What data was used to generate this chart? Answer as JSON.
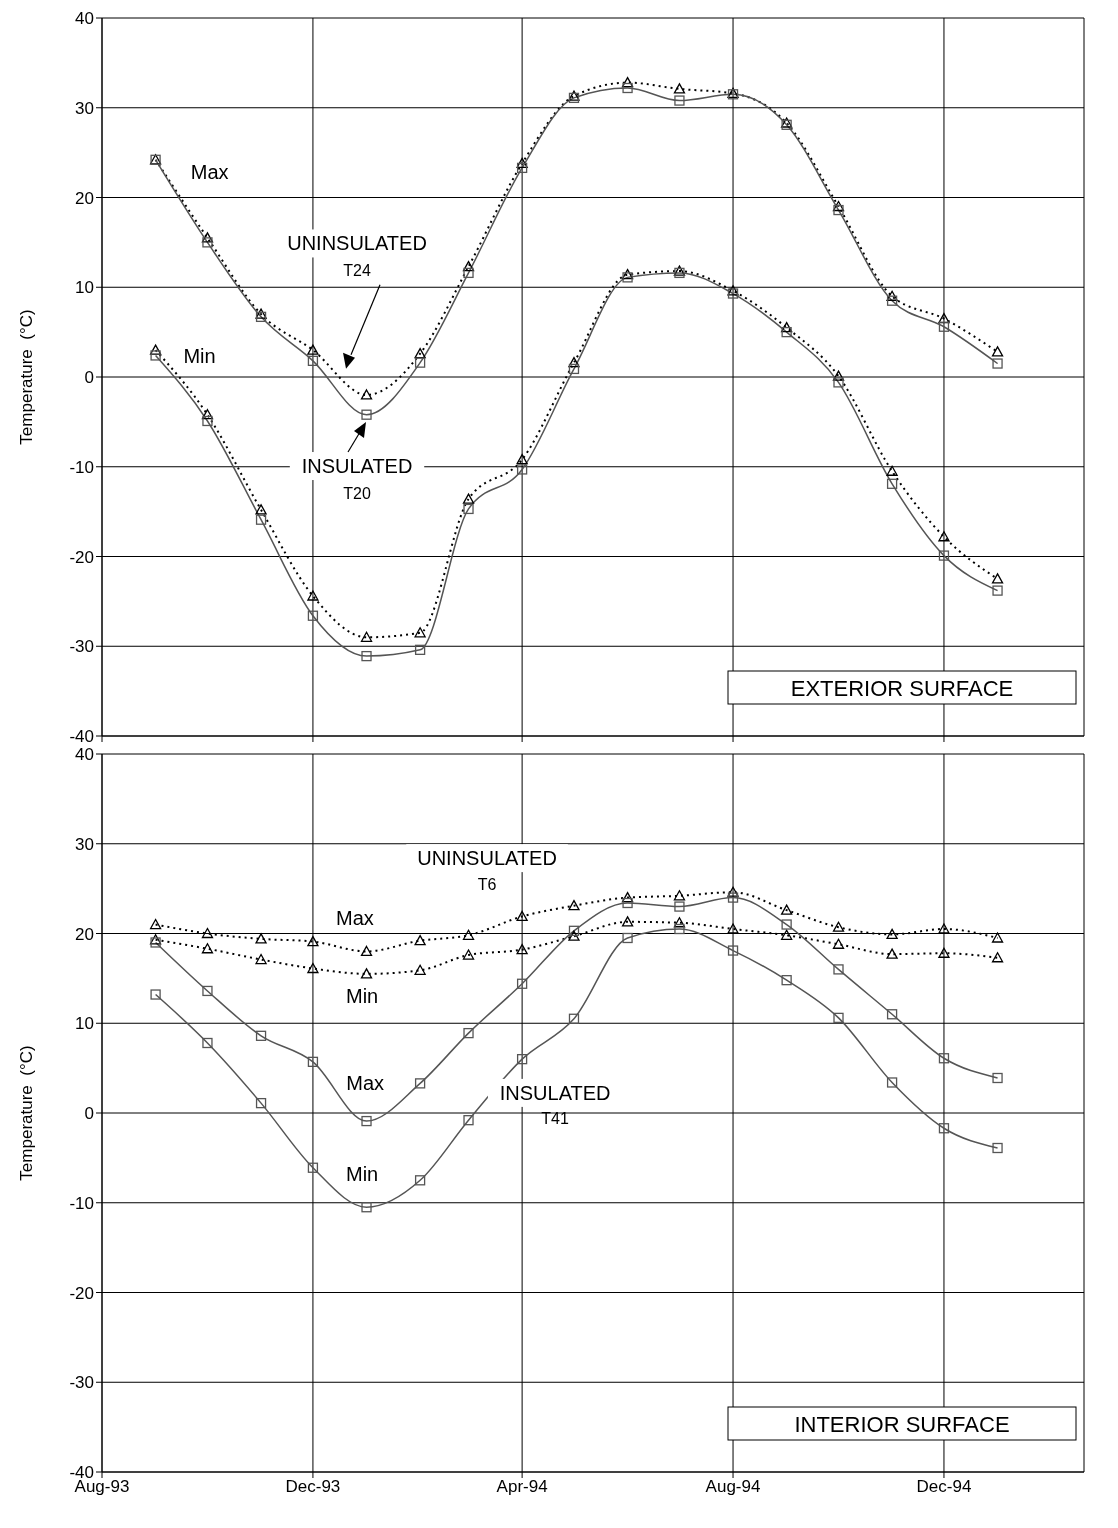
{
  "chart_data": [
    {
      "type": "line",
      "ylabel": "Temperature  (°C)",
      "x": [
        "1993-09",
        "1993-10",
        "1993-11",
        "1993-12",
        "1994-01",
        "1994-02",
        "1994-03",
        "1994-04",
        "1994-05",
        "1994-06",
        "1994-07",
        "1994-08",
        "1994-09",
        "1994-10",
        "1994-11",
        "1994-12",
        "1995-01"
      ],
      "xlim": [
        "1993-08",
        "1995-02-20"
      ],
      "xticks": [
        {
          "value": "1993-08",
          "label": null
        },
        {
          "value": "1993-12",
          "label": null
        },
        {
          "value": "1994-04",
          "label": null
        },
        {
          "value": "1994-08",
          "label": null
        },
        {
          "value": "1994-12",
          "label": null
        }
      ],
      "ylim": [
        -40,
        40
      ],
      "yticks": [
        -40,
        -30,
        -20,
        -10,
        0,
        10,
        20,
        30,
        40
      ],
      "grid": true,
      "tick_labels": "y",
      "series": [
        {
          "color": "#000000",
          "marker": "triangle",
          "line_style": "dotted",
          "values": [
            24.2,
            15.5,
            7.0,
            3.0,
            -2.0,
            2.6,
            12.3,
            23.8,
            31.3,
            32.8,
            32.1,
            31.6,
            28.3,
            19.0,
            9.0,
            6.5,
            2.8
          ]
        },
        {
          "color": "#555555",
          "marker": "square",
          "line_style": "solid",
          "values": [
            24.2,
            15.0,
            6.7,
            1.8,
            -4.2,
            1.6,
            11.6,
            23.3,
            31.1,
            32.2,
            30.8,
            31.5,
            28.1,
            18.6,
            8.5,
            5.6,
            1.5
          ]
        },
        {
          "color": "#000000",
          "marker": "triangle",
          "line_style": "dotted",
          "values": [
            3.0,
            -4.2,
            -14.8,
            -24.4,
            -29.0,
            -28.5,
            -13.6,
            -9.2,
            1.6,
            11.4,
            11.8,
            9.6,
            5.5,
            0.1,
            -10.5,
            -17.8,
            -22.5
          ]
        },
        {
          "color": "#555555",
          "marker": "square",
          "line_style": "solid",
          "values": [
            2.4,
            -4.9,
            -15.9,
            -26.6,
            -31.1,
            -30.4,
            -14.7,
            -10.3,
            0.9,
            11.1,
            11.6,
            9.3,
            5.0,
            -0.6,
            -11.9,
            -19.9,
            -23.8
          ]
        }
      ],
      "annotations": [
        "Max",
        "Min",
        "UNINSULATED",
        "T24",
        "INSULATED",
        "T20",
        "EXTERIOR SURFACE"
      ]
    },
    {
      "type": "line",
      "ylabel": "Temperature  (°C)",
      "x": [
        "1993-09",
        "1993-10",
        "1993-11",
        "1993-12",
        "1994-01",
        "1994-02",
        "1994-03",
        "1994-04",
        "1994-05",
        "1994-06",
        "1994-07",
        "1994-08",
        "1994-09",
        "1994-10",
        "1994-11",
        "1994-12",
        "1995-01"
      ],
      "xlim": [
        "1993-08",
        "1995-02-20"
      ],
      "xticks": [
        {
          "value": "1993-08",
          "label": "Aug-93"
        },
        {
          "value": "1993-12",
          "label": "Dec-93"
        },
        {
          "value": "1994-04",
          "label": "Apr-94"
        },
        {
          "value": "1994-08",
          "label": "Aug-94"
        },
        {
          "value": "1994-12",
          "label": "Dec-94"
        }
      ],
      "ylim": [
        -40,
        40
      ],
      "yticks": [
        -40,
        -30,
        -20,
        -10,
        0,
        10,
        20,
        30,
        40
      ],
      "grid": true,
      "series": [
        {
          "color": "#000000",
          "marker": "triangle",
          "line_style": "dotted",
          "values": [
            21.0,
            20.0,
            19.4,
            19.1,
            18.0,
            19.2,
            19.8,
            21.9,
            23.1,
            24.0,
            24.2,
            24.6,
            22.6,
            20.7,
            19.9,
            20.5,
            19.5
          ]
        },
        {
          "color": "#000000",
          "marker": "triangle",
          "line_style": "dotted",
          "values": [
            19.3,
            18.3,
            17.1,
            16.1,
            15.5,
            15.9,
            17.6,
            18.2,
            19.7,
            21.3,
            21.2,
            20.5,
            19.8,
            18.8,
            17.7,
            17.8,
            17.3
          ]
        },
        {
          "color": "#555555",
          "marker": "square",
          "line_style": "solid",
          "values": [
            19.0,
            13.6,
            8.6,
            5.7,
            -0.9,
            3.3,
            8.9,
            14.4,
            20.3,
            23.4,
            23.0,
            24.0,
            21.0,
            16.0,
            11.0,
            6.1,
            3.9
          ]
        },
        {
          "color": "#555555",
          "marker": "square",
          "line_style": "solid",
          "values": [
            13.2,
            7.8,
            1.1,
            -6.1,
            -10.5,
            -7.5,
            -0.8,
            6.0,
            10.5,
            19.5,
            20.5,
            18.1,
            14.8,
            10.6,
            3.4,
            -1.7,
            -3.9
          ]
        }
      ],
      "annotations": [
        "UNINSULATED",
        "T6",
        "Max",
        "Min",
        "Max",
        "Min",
        "INSULATED",
        "T41",
        "INTERIOR SURFACE"
      ]
    }
  ]
}
